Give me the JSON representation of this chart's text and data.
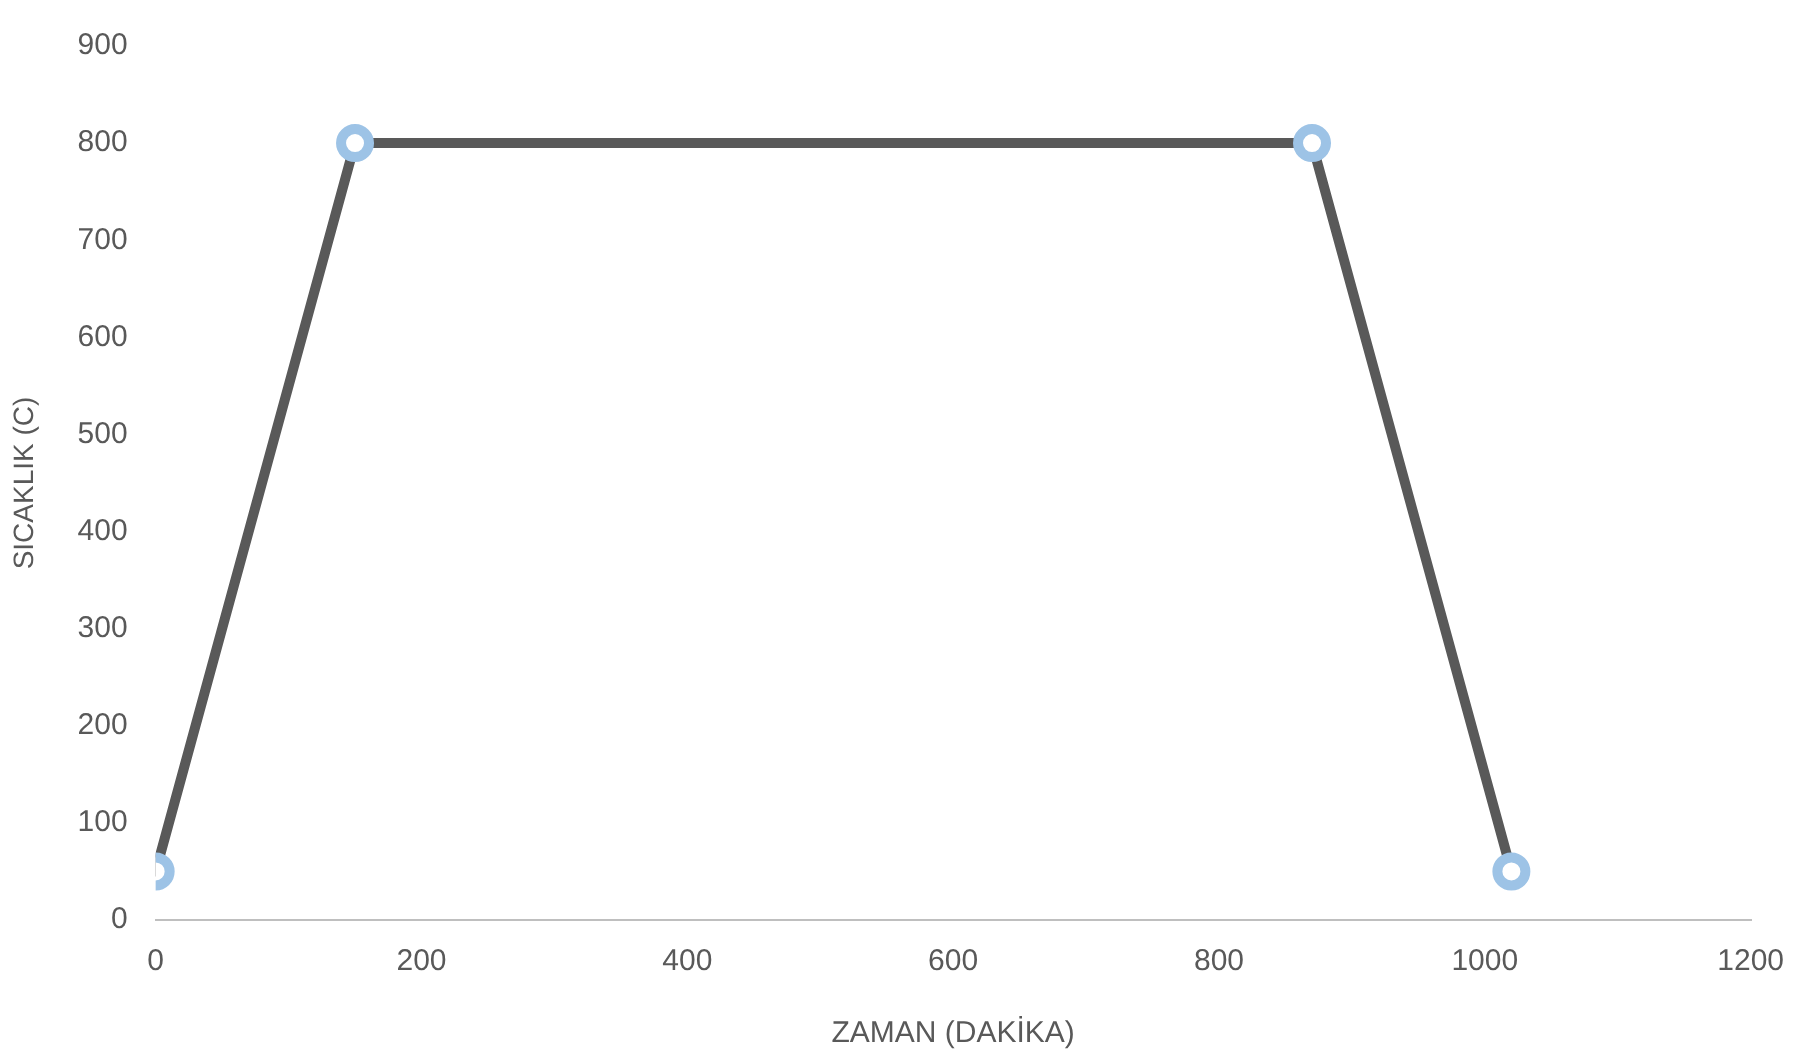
{
  "chart_data": {
    "type": "line",
    "xlabel": "ZAMAN (DAKİKA)",
    "ylabel": "SICAKLIK (C)",
    "x": [
      0,
      150,
      870,
      1020
    ],
    "series": [
      {
        "color": "#595959",
        "values": [
          50,
          800,
          800,
          50
        ]
      }
    ],
    "xlim": [
      0,
      1200
    ],
    "xticks": [
      0,
      200,
      400,
      600,
      800,
      1000,
      1200
    ],
    "ylim": [
      0,
      900
    ],
    "yticks": [
      0,
      100,
      200,
      300,
      400,
      500,
      600,
      700,
      800,
      900
    ],
    "grid": false,
    "legend": false,
    "marker": "circle",
    "line_style": "solid"
  }
}
